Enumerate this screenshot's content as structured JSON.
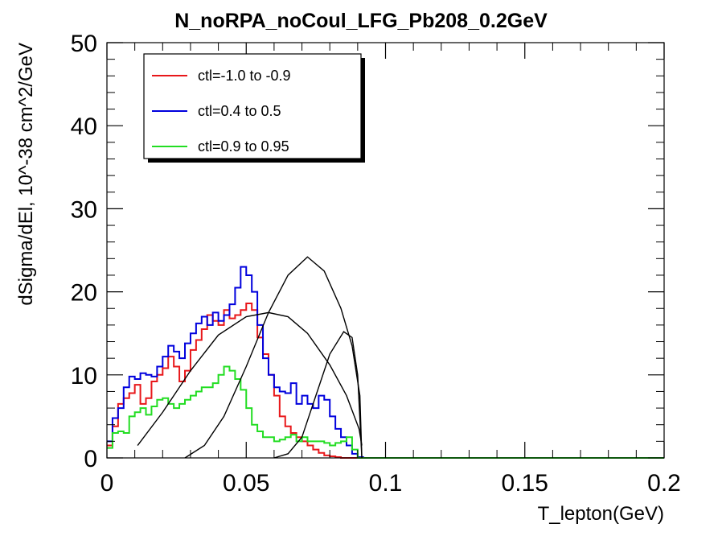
{
  "chart_data": {
    "type": "line",
    "title": "N_noRPA_noCoul_LFG_Pb208_0.2GeV",
    "xlabel": "T_lepton(GeV)",
    "ylabel": "dSigma/dEl, 10^-38 cm^2/GeV",
    "xlim": [
      0,
      0.2
    ],
    "ylim": [
      0,
      50
    ],
    "x_ticks": [
      0,
      0.05,
      0.1,
      0.15,
      0.2
    ],
    "x_tick_labels": [
      "0",
      "0.05",
      "0.1",
      "0.15",
      "0.2"
    ],
    "y_ticks": [
      0,
      10,
      20,
      30,
      40,
      50
    ],
    "y_tick_labels": [
      "0",
      "10",
      "20",
      "30",
      "40",
      "50"
    ],
    "legend_position": "top-left",
    "bin_width": 0.002,
    "series": [
      {
        "name": "ctl=-1.0 to -0.9",
        "color": "#e8171a",
        "style": "step",
        "values": [
          1.5,
          3.8,
          6.5,
          7.2,
          7.8,
          8.8,
          6.5,
          7.2,
          9.2,
          10.0,
          10.8,
          12.2,
          11.0,
          9.2,
          10.5,
          13.0,
          14.2,
          15.5,
          17.2,
          16.5,
          16.0,
          17.8,
          16.8,
          17.2,
          17.8,
          18.6,
          17.8,
          14.5,
          12.5,
          10.0,
          7.5,
          5.0,
          3.8,
          3.0,
          2.5,
          2.0,
          1.5,
          1.0,
          0.6,
          0.3,
          0.2,
          0.1,
          0.0,
          0.0,
          0.0,
          0.0,
          0.0,
          0.0,
          0.0,
          0.0,
          0.0,
          0.0,
          0.0,
          0.0,
          0.0,
          0.0,
          0.0,
          0.0,
          0.0,
          0.0,
          0.0,
          0.0,
          0.0,
          0.0,
          0.0,
          0.0,
          0.0,
          0.0,
          0.0,
          0.0,
          0.0,
          0.0,
          0.0,
          0.0,
          0.0,
          0.0,
          0.0,
          0.0,
          0.0,
          0.0,
          0.0,
          0.0,
          0.0,
          0.0,
          0.0,
          0.0,
          0.0,
          0.0,
          0.0,
          0.0,
          0.0,
          0.0,
          0.0,
          0.0,
          0.0,
          0.0,
          0.0,
          0.0,
          0.0,
          0.0
        ]
      },
      {
        "name": "ctl=0.4 to 0.5",
        "color": "#0000dd",
        "style": "step",
        "values": [
          2.0,
          4.8,
          6.0,
          8.5,
          9.8,
          9.5,
          10.2,
          10.0,
          9.8,
          11.0,
          12.2,
          13.5,
          12.8,
          12.0,
          13.8,
          15.0,
          16.2,
          17.0,
          16.0,
          17.5,
          16.5,
          17.2,
          18.5,
          20.5,
          23.0,
          22.0,
          20.0,
          16.0,
          12.0,
          10.0,
          8.5,
          8.0,
          7.8,
          9.0,
          6.5,
          7.5,
          6.5,
          6.0,
          7.5,
          7.0,
          5.0,
          3.5,
          2.5,
          1.5,
          0.5,
          0.1,
          0.0,
          0.0,
          0.0,
          0.0,
          0.0,
          0.0,
          0.0,
          0.0,
          0.0,
          0.0,
          0.0,
          0.0,
          0.0,
          0.0,
          0.0,
          0.0,
          0.0,
          0.0,
          0.0,
          0.0,
          0.0,
          0.0,
          0.0,
          0.0,
          0.0,
          0.0,
          0.0,
          0.0,
          0.0,
          0.0,
          0.0,
          0.0,
          0.0,
          0.0,
          0.0,
          0.0,
          0.0,
          0.0,
          0.0,
          0.0,
          0.0,
          0.0,
          0.0,
          0.0,
          0.0,
          0.0,
          0.0,
          0.0,
          0.0,
          0.0,
          0.0,
          0.0,
          0.0,
          0.0
        ]
      },
      {
        "name": "ctl=0.9 to 0.95",
        "color": "#22dd22",
        "style": "step",
        "values": [
          1.2,
          3.0,
          3.2,
          3.0,
          5.0,
          5.5,
          6.0,
          5.2,
          6.2,
          7.0,
          7.2,
          6.5,
          6.0,
          6.5,
          7.0,
          7.5,
          8.0,
          8.5,
          8.5,
          9.0,
          10.0,
          11.0,
          10.5,
          9.5,
          8.2,
          6.0,
          4.0,
          3.2,
          2.5,
          2.5,
          2.0,
          2.2,
          2.5,
          2.8,
          2.0,
          2.5,
          2.0,
          2.0,
          2.0,
          1.8,
          1.5,
          1.8,
          2.0,
          2.5,
          1.0,
          0.0,
          0.0,
          0.0,
          0.0,
          0.0,
          0.0,
          0.0,
          0.0,
          0.0,
          0.0,
          0.0,
          0.0,
          0.0,
          0.0,
          0.0,
          0.0,
          0.0,
          0.0,
          0.0,
          0.0,
          0.0,
          0.0,
          0.0,
          0.0,
          0.0,
          0.0,
          0.0,
          0.0,
          0.0,
          0.0,
          0.0,
          0.0,
          0.0,
          0.0,
          0.0,
          0.0,
          0.0,
          0.0,
          0.0,
          0.0,
          0.0,
          0.0,
          0.0,
          0.0,
          0.0,
          0.0,
          0.0,
          0.0,
          0.0,
          0.0,
          0.0,
          0.0,
          0.0,
          0.0,
          0.0
        ]
      },
      {
        "color": "#000000",
        "style": "curve",
        "x": [
          0.011,
          0.02,
          0.03,
          0.04,
          0.05,
          0.058,
          0.065,
          0.072,
          0.08,
          0.086,
          0.0905,
          0.0915
        ],
        "y": [
          1.5,
          5.5,
          10.5,
          14.8,
          17.0,
          17.5,
          17.0,
          15.0,
          11.2,
          7.5,
          3.5,
          1.5
        ]
      },
      {
        "color": "#000000",
        "style": "curve",
        "x": [
          0.028,
          0.035,
          0.042,
          0.05,
          0.058,
          0.065,
          0.072,
          0.078,
          0.084,
          0.088,
          0.0908,
          0.0915
        ],
        "y": [
          0.0,
          1.5,
          5.0,
          11.0,
          17.5,
          22.0,
          24.2,
          22.5,
          18.0,
          13.5,
          7.5,
          0.0
        ]
      },
      {
        "color": "#000000",
        "style": "curve",
        "x": [
          0.06,
          0.065,
          0.07,
          0.075,
          0.08,
          0.085,
          0.088,
          0.09,
          0.0915
        ],
        "y": [
          0.0,
          0.5,
          2.5,
          7.5,
          12.5,
          15.2,
          14.5,
          10.0,
          0.0
        ]
      }
    ]
  }
}
